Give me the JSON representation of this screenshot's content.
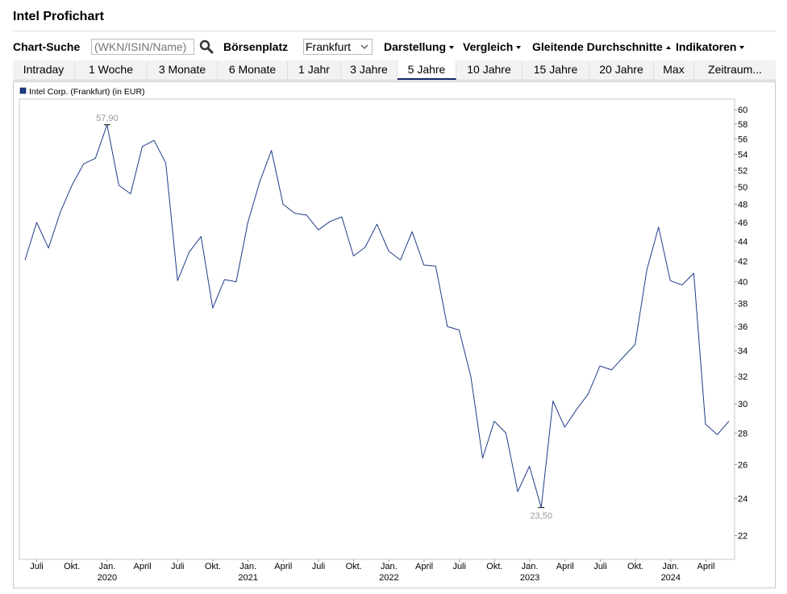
{
  "page": {
    "title": "Intel Profichart"
  },
  "toolbar": {
    "chart_search_label": "Chart-Suche",
    "search_placeholder": "(WKN/ISIN/Name)",
    "exchange_label": "Börsenplatz",
    "exchange_value": "Frankfurt",
    "display_label": "Darstellung",
    "compare_label": "Vergleich",
    "moving_avg_label": "Gleitende Durchschnitte",
    "indicators_label": "Indikatoren"
  },
  "tabs": [
    {
      "label": "Intraday",
      "active": false
    },
    {
      "label": "1 Woche",
      "active": false
    },
    {
      "label": "3 Monate",
      "active": false
    },
    {
      "label": "6 Monate",
      "active": false
    },
    {
      "label": "1 Jahr",
      "active": false
    },
    {
      "label": "3 Jahre",
      "active": false
    },
    {
      "label": "5 Jahre",
      "active": true
    },
    {
      "label": "10 Jahre",
      "active": false
    },
    {
      "label": "15 Jahre",
      "active": false
    },
    {
      "label": "20 Jahre",
      "active": false
    },
    {
      "label": "Max",
      "active": false
    },
    {
      "label": "Zeitraum...",
      "active": false
    }
  ],
  "chart_data": {
    "type": "line",
    "legend": "Intel Corp. (Frankfurt) (in EUR)",
    "line_color": "#1f3c88",
    "y_scale": "log",
    "ylim": [
      20.8,
      61.5
    ],
    "y_ticks": [
      22,
      24,
      26,
      28,
      30,
      32,
      34,
      36,
      38,
      40,
      42,
      44,
      46,
      48,
      50,
      52,
      54,
      56,
      58,
      60
    ],
    "x_ticks": [
      {
        "label": "Juli",
        "year": ""
      },
      {
        "label": "Okt.",
        "year": ""
      },
      {
        "label": "Jan.",
        "year": "2020"
      },
      {
        "label": "April",
        "year": ""
      },
      {
        "label": "Juli",
        "year": ""
      },
      {
        "label": "Okt.",
        "year": ""
      },
      {
        "label": "Jan.",
        "year": "2021"
      },
      {
        "label": "April",
        "year": ""
      },
      {
        "label": "Juli",
        "year": ""
      },
      {
        "label": "Okt.",
        "year": ""
      },
      {
        "label": "Jan.",
        "year": "2022"
      },
      {
        "label": "April",
        "year": ""
      },
      {
        "label": "Juli",
        "year": ""
      },
      {
        "label": "Okt.",
        "year": ""
      },
      {
        "label": "Jan.",
        "year": "2023"
      },
      {
        "label": "April",
        "year": ""
      },
      {
        "label": "Juli",
        "year": ""
      },
      {
        "label": "Okt.",
        "year": ""
      },
      {
        "label": "Jan.",
        "year": "2024"
      },
      {
        "label": "April",
        "year": ""
      }
    ],
    "series": [
      {
        "values": [
          42.1,
          46.0,
          43.3,
          47.1,
          50.2,
          52.8,
          53.5,
          57.9,
          50.2,
          49.2,
          55.0,
          55.8,
          52.9,
          40.1,
          42.9,
          44.5,
          37.6,
          40.2,
          40.0,
          46.0,
          50.6,
          54.5,
          48.0,
          47.0,
          46.8,
          45.2,
          46.1,
          46.6,
          42.5,
          43.4,
          45.8,
          43.0,
          42.1,
          45.0,
          41.6,
          41.5,
          36.0,
          35.7,
          32.0,
          26.4,
          28.8,
          28.0,
          24.4,
          25.9,
          23.5,
          30.2,
          28.4,
          29.6,
          30.7,
          32.8,
          32.5,
          33.5,
          34.5,
          41.1,
          45.5,
          40.1,
          39.7,
          40.8,
          28.6,
          27.9,
          28.8
        ]
      }
    ],
    "annotations": [
      {
        "label": "57,90",
        "value": 57.9,
        "index": 7
      },
      {
        "label": "23,50",
        "value": 23.5,
        "index": 44
      }
    ]
  }
}
